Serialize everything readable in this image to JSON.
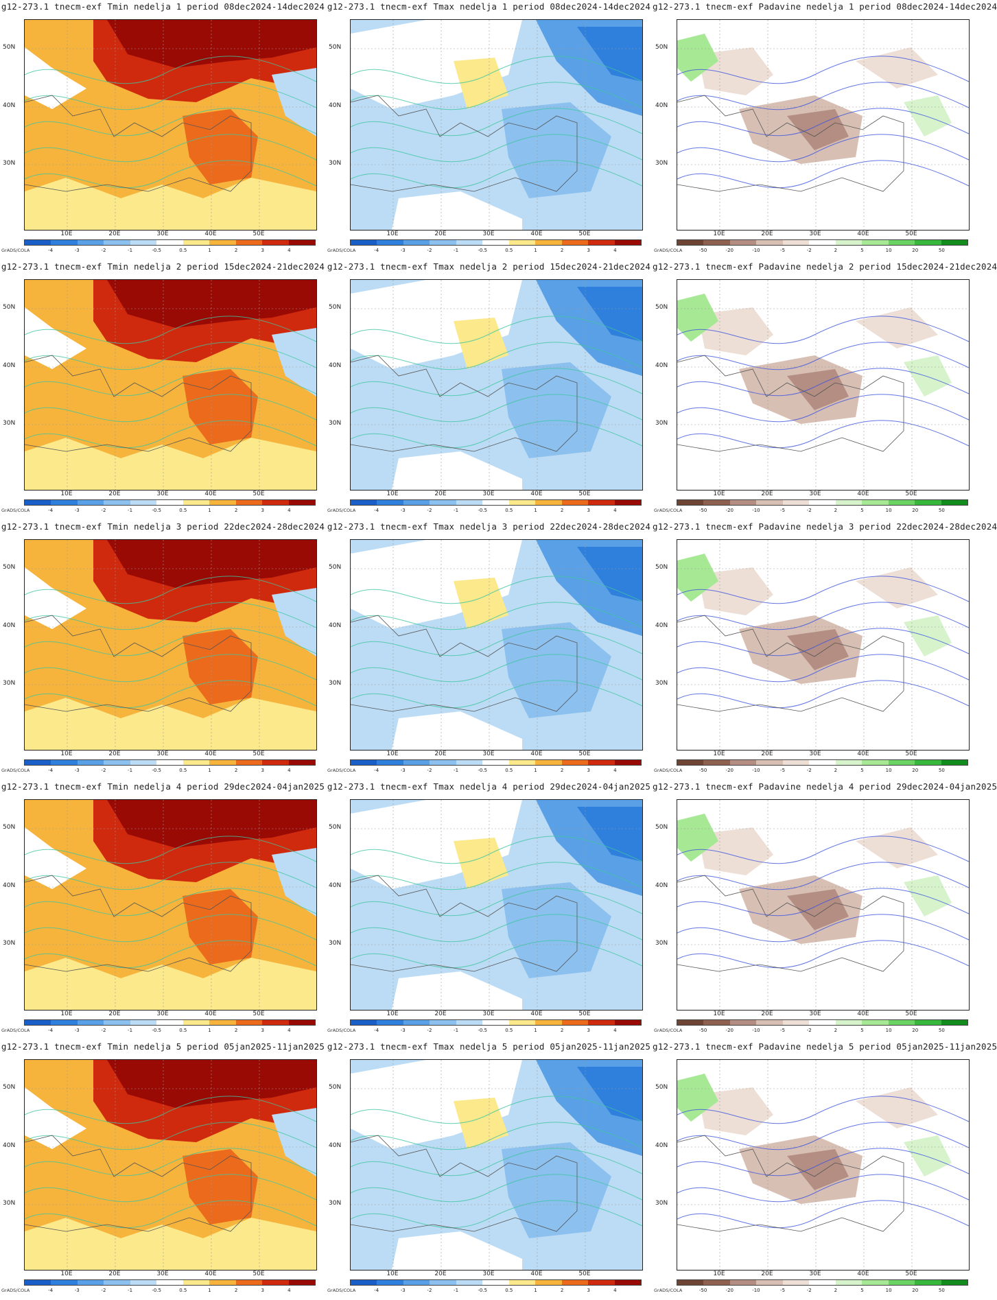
{
  "credit": "GrADS/COLA",
  "lat_labels": [
    "50N",
    "40N",
    "30N"
  ],
  "lon_labels": [
    "10E",
    "20E",
    "30E",
    "40E",
    "50E"
  ],
  "temp_scale": {
    "ticks": [
      "-4",
      "-3",
      "-2",
      "-1",
      "-0.5",
      "0.5",
      "1",
      "2",
      "3",
      "4"
    ],
    "colors": [
      "#1a5fc8",
      "#2f7fdc",
      "#5aa0e6",
      "#8cc0ee",
      "#bcdcf5",
      "#ffffff",
      "#fbe98c",
      "#f6b43c",
      "#ec6a1c",
      "#cf2a0e",
      "#9a0a05"
    ]
  },
  "precip_scale": {
    "ticks": [
      "-50",
      "-20",
      "-10",
      "-5",
      "-2",
      "2",
      "5",
      "10",
      "20",
      "50"
    ],
    "colors": [
      "#6e4534",
      "#8d6050",
      "#b48e82",
      "#d8bfb4",
      "#eedfd6",
      "#ffffff",
      "#d6f3cc",
      "#a6e894",
      "#6ad363",
      "#37b83c",
      "#128c1c"
    ]
  },
  "panels": [
    {
      "title": "g12-273.1 tnecm-exf Tmin nedelja 1 period 08dec2024-14dec2024",
      "var": "Tmin"
    },
    {
      "title": "g12-273.1 tnecm-exf Tmax nedelja 1 period 08dec2024-14dec2024",
      "var": "Tmax"
    },
    {
      "title": "g12-273.1 tnecm-exf Padavine nedelja 1 period 08dec2024-14dec2024",
      "var": "Padavine"
    },
    {
      "title": "g12-273.1 tnecm-exf Tmin nedelja 2 period 15dec2024-21dec2024",
      "var": "Tmin"
    },
    {
      "title": "g12-273.1 tnecm-exf Tmax nedelja 2 period 15dec2024-21dec2024",
      "var": "Tmax"
    },
    {
      "title": "g12-273.1 tnecm-exf Padavine nedelja 2 period 15dec2024-21dec2024",
      "var": "Padavine"
    },
    {
      "title": "g12-273.1 tnecm-exf Tmin nedelja 3 period 22dec2024-28dec2024",
      "var": "Tmin"
    },
    {
      "title": "g12-273.1 tnecm-exf Tmax nedelja 3 period 22dec2024-28dec2024",
      "var": "Tmax"
    },
    {
      "title": "g12-273.1 tnecm-exf Padavine nedelja 3 period 22dec2024-28dec2024",
      "var": "Padavine"
    },
    {
      "title": "g12-273.1 tnecm-exf Tmin nedelja 4 period 29dec2024-04jan2025",
      "var": "Tmin"
    },
    {
      "title": "g12-273.1 tnecm-exf Tmax nedelja 4 period 29dec2024-04jan2025",
      "var": "Tmax"
    },
    {
      "title": "g12-273.1 tnecm-exf Padavine nedelja 4 period 29dec2024-04jan2025",
      "var": "Padavine"
    },
    {
      "title": "g12-273.1 tnecm-exf Tmin nedelja 5 period 05jan2025-11jan2025",
      "var": "Tmin"
    },
    {
      "title": "g12-273.1 tnecm-exf Tmax nedelja 5 period 05jan2025-11jan2025",
      "var": "Tmax"
    },
    {
      "title": "g12-273.1 tnecm-exf Padavine nedelja 5 period 05jan2025-11jan2025",
      "var": "Padavine"
    }
  ]
}
